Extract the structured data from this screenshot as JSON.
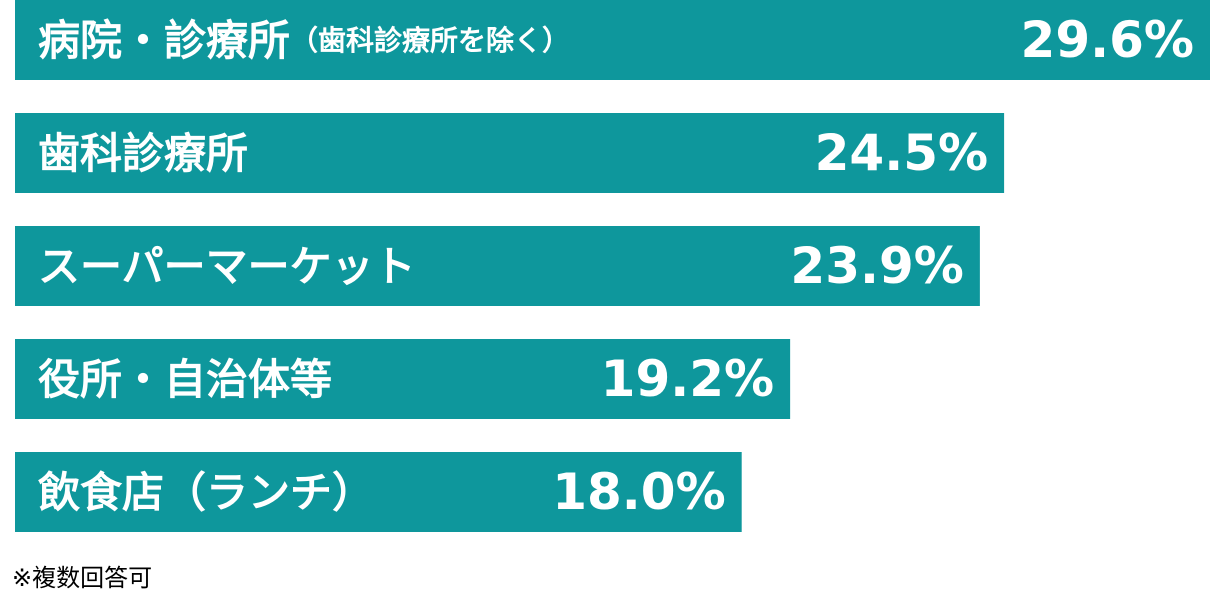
{
  "chart_data": {
    "type": "bar",
    "orientation": "horizontal",
    "categories": [
      "病院・診療所",
      "歯科診療所",
      "スーパーマーケット",
      "役所・自治体等",
      "飲食店（ランチ）"
    ],
    "category_notes": [
      "（歯科診療所を除く）",
      null,
      null,
      null,
      null
    ],
    "values": [
      29.6,
      24.5,
      23.9,
      19.2,
      18.0
    ],
    "value_labels": [
      "29.6%",
      "24.5%",
      "23.9%",
      "19.2%",
      "18.0%"
    ],
    "color": "#0e979c",
    "footnote": "※複数回答可"
  }
}
